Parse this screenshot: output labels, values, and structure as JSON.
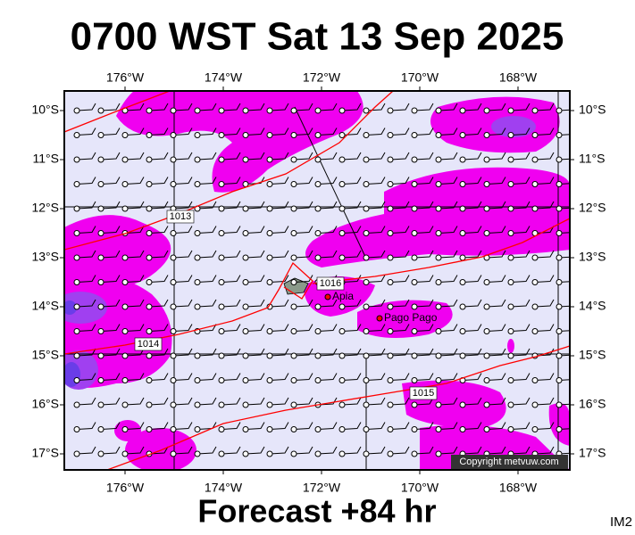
{
  "header": {
    "title": "0700 WST Sat 13 Sep 2025"
  },
  "map": {
    "lon_ticks": [
      "176°W",
      "174°W",
      "172°W",
      "170°W",
      "168°W"
    ],
    "lat_ticks": [
      "10°S",
      "11°S",
      "12°S",
      "13°S",
      "14°S",
      "15°S",
      "16°S",
      "17°S"
    ],
    "isobar_labels": [
      "1013",
      "1014",
      "1016",
      "1015"
    ],
    "places": [
      "Apia",
      "Pago Pago"
    ],
    "credit": "Copyright metvuw.com"
  },
  "footer": {
    "forecast": "Forecast +84 hr",
    "code": "IM2"
  }
}
